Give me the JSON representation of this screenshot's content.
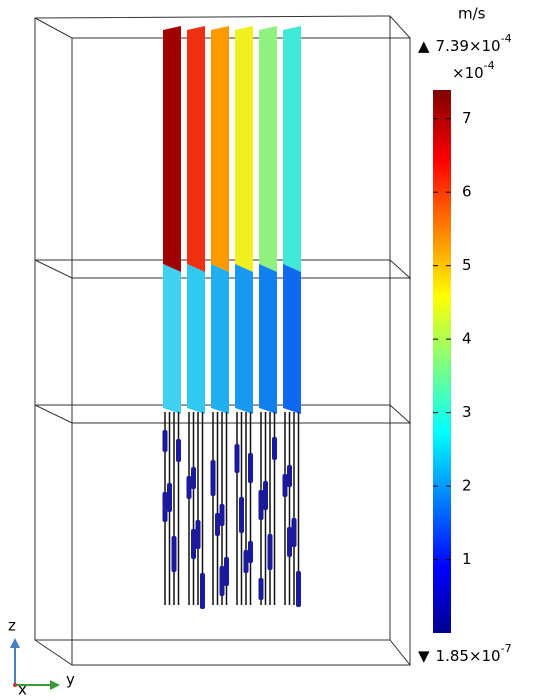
{
  "colorbar": {
    "unit": "m/s",
    "max_label": {
      "marker": "▲",
      "mantissa": "7.39×10",
      "exponent": "-4"
    },
    "multiplier": {
      "mantissa": "×10",
      "exponent": "-4"
    },
    "min_label": {
      "marker": "▼",
      "mantissa": "1.85×10",
      "exponent": "-7"
    },
    "clim": [
      0.00185,
      7.39
    ],
    "ticks": [
      1,
      2,
      3,
      4,
      5,
      6,
      7
    ]
  },
  "axes": {
    "z": "z",
    "x": "x",
    "y": "y"
  }
}
